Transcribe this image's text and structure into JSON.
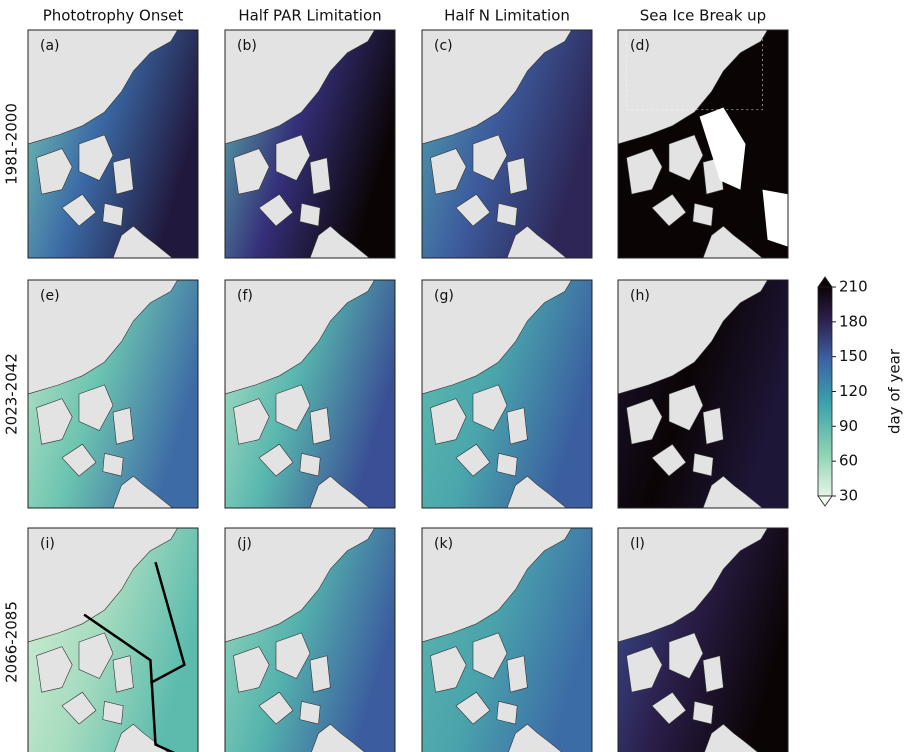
{
  "columns": [
    "Phototrophy Onset",
    "Half PAR Limitation",
    "Half N Limitation",
    "Sea Ice Break up"
  ],
  "rows": [
    "1981-2000",
    "2023-2042",
    "2066-2085"
  ],
  "panels": [
    "(a)",
    "(b)",
    "(c)",
    "(d)",
    "(e)",
    "(f)",
    "(g)",
    "(h)",
    "(i)",
    "(j)",
    "(k)",
    "(l)"
  ],
  "colorbar": {
    "label": "day of year",
    "lim": [
      30,
      210
    ],
    "ticks": [
      30,
      60,
      90,
      120,
      150,
      180,
      210
    ]
  }
}
